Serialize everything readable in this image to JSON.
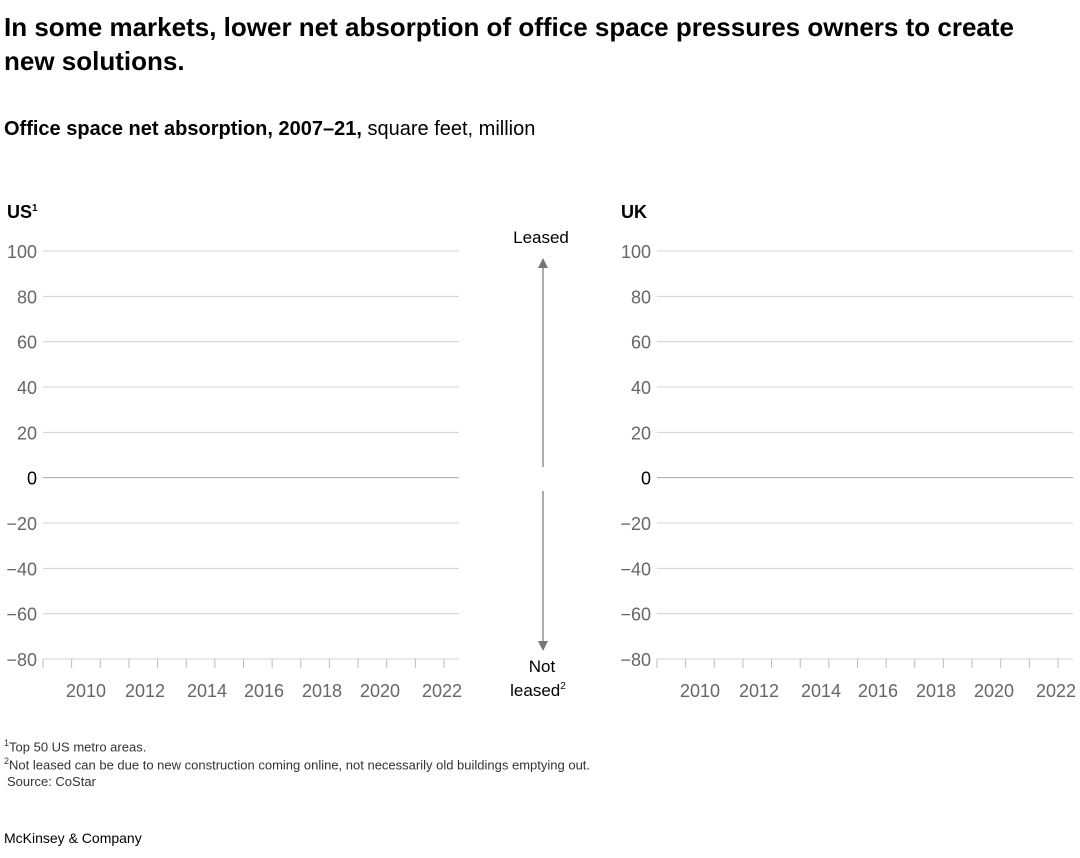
{
  "title": "In some markets, lower net absorption of office space pressures owners to create new solutions.",
  "subtitle_bold": "Office space net absorption, 2007–21,",
  "subtitle_rest": " square feet, million",
  "arrow_labels": {
    "up": "Leased",
    "down_line1": "Not",
    "down_line2": "leased",
    "down_sup": "2"
  },
  "footnotes": [
    "Top 50 US metro areas.",
    "Not leased can be due to new construction coming online, not necessarily old buildings emptying out.",
    "Source: CoStar"
  ],
  "footnote_marks": [
    "1",
    "2"
  ],
  "brand": "McKinsey & Company",
  "chart_data": [
    {
      "type": "bar",
      "title": "US",
      "title_sup": "1",
      "ylim": [
        -80,
        100
      ],
      "yticks": [
        100,
        80,
        60,
        40,
        20,
        0,
        -20,
        -40,
        -60,
        -80
      ],
      "xtick_labels": [
        "2010",
        "2012",
        "2014",
        "2016",
        "2018",
        "2020",
        "2022"
      ],
      "grid": true,
      "values": []
    },
    {
      "type": "bar",
      "title": "UK",
      "title_sup": "",
      "ylim": [
        -80,
        100
      ],
      "yticks": [
        100,
        80,
        60,
        40,
        20,
        0,
        -20,
        -40,
        -60,
        -80
      ],
      "xtick_labels": [
        "2010",
        "2012",
        "2014",
        "2016",
        "2018",
        "2020",
        "2022"
      ],
      "grid": true,
      "values": []
    }
  ],
  "colors": {
    "grid": "#d0d0d0",
    "tick_text": "#666666",
    "arrow": "#777777"
  }
}
